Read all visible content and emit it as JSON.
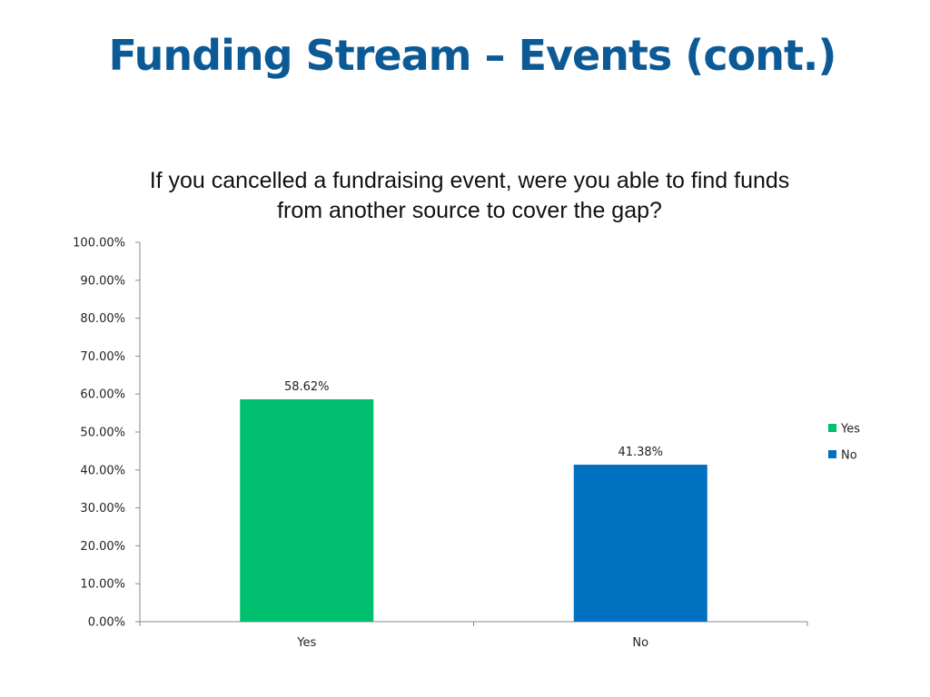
{
  "slide": {
    "title": "Funding Stream – Events (cont.)",
    "title_color": "#0b5a96"
  },
  "chart_data": {
    "type": "bar",
    "title": "If you cancelled a fundraising event, were you able to find funds from another source to cover the gap?",
    "categories": [
      "Yes",
      "No"
    ],
    "values": [
      58.62,
      41.38
    ],
    "data_labels": [
      "58.62%",
      "41.38%"
    ],
    "colors": [
      "#00c06f",
      "#0070c0"
    ],
    "xlabel": "",
    "ylabel": "",
    "ylim": [
      0,
      100
    ],
    "yticks": [
      0,
      10,
      20,
      30,
      40,
      50,
      60,
      70,
      80,
      90,
      100
    ],
    "ytick_labels": [
      "0.00%",
      "10.00%",
      "20.00%",
      "30.00%",
      "40.00%",
      "50.00%",
      "60.00%",
      "70.00%",
      "80.00%",
      "90.00%",
      "100.00%"
    ],
    "grid": false,
    "legend": {
      "placement": "right",
      "entries": [
        {
          "label": "Yes",
          "color": "#00c06f"
        },
        {
          "label": "No",
          "color": "#0070c0"
        }
      ]
    }
  }
}
